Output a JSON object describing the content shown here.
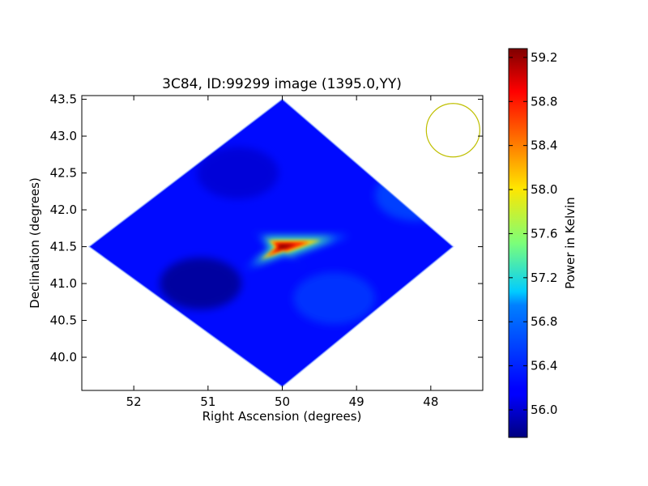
{
  "chart_data": {
    "type": "heatmap",
    "title": "3C84, ID:99299 image (1395.0,YY)",
    "xlabel": "Right Ascension (degrees)",
    "ylabel": "Declination (degrees)",
    "xlim": [
      52.7,
      47.3
    ],
    "ylim": [
      39.55,
      43.55
    ],
    "x_ticks": [
      {
        "value": 52,
        "label": "52"
      },
      {
        "value": 51,
        "label": "51"
      },
      {
        "value": 50,
        "label": "50"
      },
      {
        "value": 49,
        "label": "49"
      },
      {
        "value": 48,
        "label": "48"
      }
    ],
    "y_ticks": [
      {
        "value": 40.0,
        "label": "40.0"
      },
      {
        "value": 40.5,
        "label": "40.5"
      },
      {
        "value": 41.0,
        "label": "41.0"
      },
      {
        "value": 41.5,
        "label": "41.5"
      },
      {
        "value": 42.0,
        "label": "42.0"
      },
      {
        "value": 42.5,
        "label": "42.5"
      },
      {
        "value": 43.0,
        "label": "43.0"
      },
      {
        "value": 43.5,
        "label": "43.5"
      }
    ],
    "field_footprint": {
      "shape": "diamond",
      "top": [
        50.0,
        43.5
      ],
      "right": [
        47.7,
        41.5
      ],
      "bottom": [
        50.0,
        39.6
      ],
      "left": [
        52.6,
        41.5
      ]
    },
    "background_level": 56.2,
    "source": {
      "ra": 50.0,
      "dec": 41.5,
      "peak": 59.3
    },
    "secondary_features": [
      {
        "ra": 51.1,
        "dec": 41.0,
        "level": 55.8
      },
      {
        "ra": 50.6,
        "dec": 42.5,
        "level": 56.0
      },
      {
        "ra": 48.2,
        "dec": 42.2,
        "level": 56.6
      },
      {
        "ra": 49.3,
        "dec": 40.8,
        "level": 56.5
      }
    ],
    "beam_circle": {
      "ra": 47.7,
      "dec": 43.08,
      "radius_deg": 0.36,
      "color": "#bfbf00"
    },
    "colorbar": {
      "label": "Power in Kelvin",
      "range": [
        55.75,
        59.28
      ],
      "colormap": "jet",
      "ticks": [
        {
          "value": 56.0,
          "label": "56.0"
        },
        {
          "value": 56.4,
          "label": "56.4"
        },
        {
          "value": 56.8,
          "label": "56.8"
        },
        {
          "value": 57.2,
          "label": "57.2"
        },
        {
          "value": 57.6,
          "label": "57.6"
        },
        {
          "value": 58.0,
          "label": "58.0"
        },
        {
          "value": 58.4,
          "label": "58.4"
        },
        {
          "value": 58.8,
          "label": "58.8"
        },
        {
          "value": 59.2,
          "label": "59.2"
        }
      ]
    }
  }
}
